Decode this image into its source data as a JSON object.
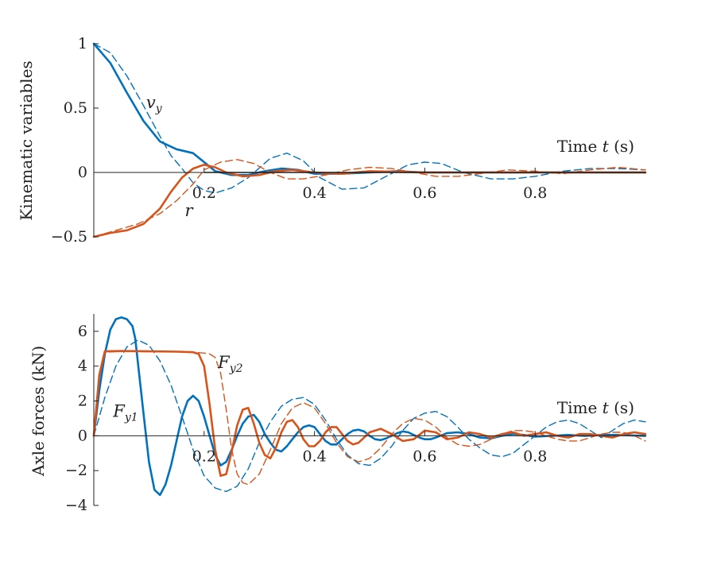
{
  "chart_data": [
    {
      "type": "line",
      "ylabel": "Kinematic variables",
      "xlabel": "Time t (s)",
      "xlabel_parts": {
        "word": "Time",
        "var": "t",
        "unit": "(s)"
      },
      "xlim": [
        0,
        1.0
      ],
      "ylim": [
        -0.5,
        1.0
      ],
      "xticks": [
        0.2,
        0.4,
        0.6,
        0.8
      ],
      "xtick_labels": [
        "0.2",
        "0.4",
        "0.6",
        "0.8"
      ],
      "yticks": [
        -0.5,
        0,
        0.5,
        1
      ],
      "ytick_labels": [
        "−0.5",
        "0",
        "0.5",
        "1"
      ],
      "grid": false,
      "annotations": [
        {
          "id": "vy",
          "base": "v",
          "sub": "y",
          "x": 0.095,
          "y": 0.5
        },
        {
          "id": "r",
          "base": "r",
          "sub": "",
          "x": 0.165,
          "y": -0.34
        }
      ],
      "series": [
        {
          "id": "vy_solid",
          "color": "#0072BD",
          "style": "solid",
          "x": [
            0,
            0.03,
            0.06,
            0.09,
            0.12,
            0.15,
            0.18,
            0.2,
            0.22,
            0.25,
            0.28,
            0.31,
            0.34,
            0.37,
            0.4,
            0.45,
            0.5,
            0.55,
            0.6,
            0.7,
            0.8,
            0.9,
            1.0
          ],
          "y": [
            1.0,
            0.85,
            0.62,
            0.4,
            0.24,
            0.18,
            0.15,
            0.08,
            0.01,
            -0.02,
            -0.02,
            0.01,
            0.03,
            0.02,
            -0.01,
            -0.01,
            0.0,
            0.01,
            0.0,
            0.0,
            0.0,
            0.0,
            0.0
          ]
        },
        {
          "id": "vy_dashed",
          "color": "#0072BD",
          "style": "dashed",
          "x": [
            0,
            0.03,
            0.06,
            0.09,
            0.12,
            0.14,
            0.16,
            0.18,
            0.2,
            0.22,
            0.25,
            0.28,
            0.32,
            0.35,
            0.38,
            0.41,
            0.45,
            0.49,
            0.53,
            0.57,
            0.6,
            0.63,
            0.67,
            0.72,
            0.76,
            0.8,
            0.85,
            0.9,
            0.95,
            1.0
          ],
          "y": [
            1.0,
            0.93,
            0.75,
            0.52,
            0.28,
            0.13,
            0.03,
            -0.08,
            -0.14,
            -0.16,
            -0.12,
            -0.04,
            0.11,
            0.15,
            0.09,
            -0.04,
            -0.13,
            -0.12,
            -0.03,
            0.06,
            0.08,
            0.07,
            0.0,
            -0.05,
            -0.05,
            -0.03,
            0.01,
            0.03,
            0.03,
            0.02
          ]
        },
        {
          "id": "r_solid",
          "color": "#D95319",
          "style": "solid",
          "x": [
            0,
            0.03,
            0.06,
            0.09,
            0.12,
            0.14,
            0.16,
            0.18,
            0.2,
            0.22,
            0.24,
            0.27,
            0.3,
            0.33,
            0.36,
            0.4,
            0.45,
            0.5,
            0.6,
            0.7,
            0.8,
            0.9,
            1.0
          ],
          "y": [
            -0.5,
            -0.47,
            -0.45,
            -0.4,
            -0.28,
            -0.15,
            -0.04,
            0.03,
            0.06,
            0.04,
            0.0,
            -0.03,
            -0.02,
            0.01,
            0.02,
            0.0,
            -0.01,
            0.01,
            0.0,
            0.0,
            0.0,
            0.0,
            0.0
          ]
        },
        {
          "id": "r_dashed",
          "color": "#D95319",
          "style": "dashed",
          "x": [
            0,
            0.04,
            0.08,
            0.12,
            0.15,
            0.18,
            0.2,
            0.23,
            0.26,
            0.29,
            0.32,
            0.35,
            0.38,
            0.42,
            0.46,
            0.5,
            0.54,
            0.58,
            0.62,
            0.66,
            0.7,
            0.75,
            0.8,
            0.85,
            0.9,
            0.95,
            1.0
          ],
          "y": [
            -0.5,
            -0.45,
            -0.4,
            -0.32,
            -0.22,
            -0.09,
            0.02,
            0.08,
            0.1,
            0.07,
            0.0,
            -0.05,
            -0.05,
            -0.02,
            0.02,
            0.04,
            0.03,
            0.0,
            -0.03,
            -0.03,
            -0.01,
            0.02,
            0.01,
            -0.01,
            0.02,
            0.04,
            0.02
          ]
        },
        {
          "id": "zero_black",
          "color": "#111111",
          "style": "solid",
          "x": [
            0.2,
            0.3,
            0.4,
            0.5,
            0.6,
            0.7,
            0.8,
            0.9,
            1.0
          ],
          "y": [
            0.0,
            0.0,
            0.0,
            0.0,
            0.0,
            0.0,
            0.0,
            0.0,
            0.0
          ]
        }
      ]
    },
    {
      "type": "line",
      "ylabel": "Axle forces (kN)",
      "xlabel": "Time t (s)",
      "xlabel_parts": {
        "word": "Time",
        "var": "t",
        "unit": "(s)"
      },
      "xlim": [
        0,
        1.0
      ],
      "ylim": [
        -4,
        7
      ],
      "xticks": [
        0.2,
        0.4,
        0.6,
        0.8
      ],
      "xtick_labels": [
        "0.2",
        "0.4",
        "0.6",
        "0.8"
      ],
      "yticks": [
        -4,
        -2,
        0,
        2,
        4,
        6
      ],
      "ytick_labels": [
        "−4",
        "−2",
        "0",
        "2",
        "4",
        "6"
      ],
      "grid": false,
      "annotations": [
        {
          "id": "fy1",
          "base": "F",
          "sub": "y1",
          "x": 0.035,
          "y": 1.1
        },
        {
          "id": "fy2",
          "base": "F",
          "sub": "y2",
          "x": 0.225,
          "y": 3.9
        }
      ],
      "series": [
        {
          "id": "fy1_solid",
          "color": "#0072BD",
          "style": "solid",
          "x": [
            0,
            0.01,
            0.02,
            0.03,
            0.04,
            0.05,
            0.06,
            0.07,
            0.075,
            0.08,
            0.09,
            0.1,
            0.11,
            0.12,
            0.13,
            0.14,
            0.15,
            0.16,
            0.17,
            0.18,
            0.19,
            0.2,
            0.21,
            0.22,
            0.23,
            0.24,
            0.25,
            0.26,
            0.27,
            0.28,
            0.29,
            0.3,
            0.31,
            0.32,
            0.33,
            0.34,
            0.35,
            0.36,
            0.37,
            0.38,
            0.39,
            0.4,
            0.41,
            0.42,
            0.43,
            0.44,
            0.45,
            0.46,
            0.47,
            0.48,
            0.49,
            0.5,
            0.51,
            0.52,
            0.53,
            0.54,
            0.55,
            0.56,
            0.57,
            0.58,
            0.59,
            0.6,
            0.61,
            0.62,
            0.64,
            0.66,
            0.68,
            0.7,
            0.72,
            0.74,
            0.76,
            0.78,
            0.8,
            0.83,
            0.86,
            0.89,
            0.92,
            0.95,
            1.0
          ],
          "y": [
            0.0,
            2.6,
            4.7,
            6.1,
            6.7,
            6.8,
            6.7,
            6.3,
            5.6,
            4.2,
            1.3,
            -1.5,
            -3.1,
            -3.4,
            -2.8,
            -1.7,
            -0.3,
            1.1,
            2.0,
            2.3,
            2.0,
            1.1,
            0.0,
            -1.1,
            -1.7,
            -1.5,
            -0.8,
            0.0,
            0.7,
            1.1,
            1.2,
            0.8,
            0.1,
            -0.4,
            -0.8,
            -0.9,
            -0.6,
            -0.2,
            0.2,
            0.5,
            0.6,
            0.5,
            0.1,
            -0.3,
            -0.5,
            -0.5,
            -0.2,
            0.1,
            0.3,
            0.35,
            0.25,
            0.0,
            -0.2,
            -0.25,
            -0.15,
            0.0,
            0.15,
            0.25,
            0.2,
            0.05,
            -0.1,
            -0.2,
            -0.2,
            -0.1,
            0.15,
            0.2,
            0.1,
            -0.1,
            -0.15,
            0.0,
            0.1,
            0.05,
            -0.05,
            0.0,
            0.05,
            0.0,
            0.05,
            0.05,
            0.0
          ]
        },
        {
          "id": "fy1_dashed",
          "color": "#0072BD",
          "style": "dashed",
          "x": [
            0,
            0.02,
            0.04,
            0.06,
            0.08,
            0.1,
            0.12,
            0.14,
            0.16,
            0.18,
            0.2,
            0.22,
            0.24,
            0.26,
            0.28,
            0.3,
            0.32,
            0.34,
            0.36,
            0.38,
            0.4,
            0.42,
            0.44,
            0.46,
            0.48,
            0.5,
            0.52,
            0.54,
            0.56,
            0.58,
            0.6,
            0.62,
            0.64,
            0.66,
            0.68,
            0.7,
            0.72,
            0.74,
            0.76,
            0.78,
            0.8,
            0.82,
            0.84,
            0.86,
            0.88,
            0.9,
            0.92,
            0.94,
            0.96,
            0.98,
            1.0
          ],
          "y": [
            0.0,
            2.2,
            4.0,
            5.1,
            5.5,
            5.2,
            4.3,
            2.9,
            1.1,
            -0.8,
            -2.3,
            -3.0,
            -3.2,
            -2.9,
            -1.9,
            -0.4,
            0.8,
            1.7,
            2.1,
            2.2,
            1.8,
            0.9,
            -0.2,
            -1.1,
            -1.6,
            -1.7,
            -1.3,
            -0.6,
            0.3,
            1.0,
            1.3,
            1.4,
            1.1,
            0.5,
            -0.2,
            -0.7,
            -1.1,
            -1.2,
            -1.0,
            -0.5,
            0.0,
            0.5,
            0.8,
            0.9,
            0.7,
            0.3,
            -0.1,
            0.3,
            0.7,
            0.9,
            0.8
          ]
        },
        {
          "id": "fy2_solid",
          "color": "#D95319",
          "style": "solid",
          "x": [
            0,
            0.01,
            0.02,
            0.05,
            0.1,
            0.15,
            0.18,
            0.19,
            0.2,
            0.21,
            0.22,
            0.23,
            0.24,
            0.25,
            0.26,
            0.27,
            0.28,
            0.29,
            0.3,
            0.31,
            0.32,
            0.33,
            0.34,
            0.35,
            0.36,
            0.37,
            0.38,
            0.39,
            0.4,
            0.41,
            0.42,
            0.43,
            0.44,
            0.45,
            0.46,
            0.47,
            0.48,
            0.49,
            0.5,
            0.52,
            0.54,
            0.56,
            0.58,
            0.6,
            0.62,
            0.64,
            0.66,
            0.68,
            0.7,
            0.72,
            0.74,
            0.76,
            0.78,
            0.8,
            0.82,
            0.84,
            0.86,
            0.88,
            0.9,
            0.92,
            0.94,
            0.96,
            0.98,
            1.0
          ],
          "y": [
            0.0,
            3.5,
            4.85,
            4.87,
            4.85,
            4.83,
            4.8,
            4.7,
            4.0,
            1.8,
            -0.8,
            -2.3,
            -2.2,
            -0.9,
            0.6,
            1.5,
            1.6,
            0.7,
            -0.4,
            -1.1,
            -1.3,
            -0.7,
            0.2,
            0.8,
            0.9,
            0.5,
            -0.2,
            -0.6,
            -0.6,
            -0.3,
            0.2,
            0.5,
            0.5,
            0.1,
            -0.3,
            -0.5,
            -0.4,
            -0.1,
            0.2,
            0.4,
            0.1,
            -0.3,
            -0.2,
            0.3,
            0.2,
            -0.2,
            -0.1,
            0.2,
            0.1,
            -0.1,
            0.1,
            0.2,
            0.0,
            0.1,
            0.2,
            0.0,
            -0.1,
            0.1,
            0.1,
            0.0,
            -0.1,
            0.1,
            0.2,
            0.1
          ]
        },
        {
          "id": "fy2_dashed",
          "color": "#D95319",
          "style": "dashed",
          "x": [
            0,
            0.01,
            0.02,
            0.05,
            0.1,
            0.15,
            0.18,
            0.2,
            0.21,
            0.22,
            0.23,
            0.24,
            0.25,
            0.26,
            0.27,
            0.28,
            0.3,
            0.32,
            0.34,
            0.36,
            0.38,
            0.4,
            0.42,
            0.44,
            0.46,
            0.48,
            0.5,
            0.52,
            0.54,
            0.56,
            0.58,
            0.6,
            0.62,
            0.64,
            0.66,
            0.68,
            0.7,
            0.72,
            0.74,
            0.76,
            0.78,
            0.8,
            0.82,
            0.84,
            0.86,
            0.88,
            0.9,
            0.92,
            0.94,
            0.96,
            0.98,
            1.0
          ],
          "y": [
            0.0,
            3.3,
            4.8,
            4.85,
            4.83,
            4.82,
            4.8,
            4.75,
            4.7,
            4.5,
            3.6,
            1.5,
            -0.8,
            -2.2,
            -2.7,
            -2.8,
            -2.2,
            -0.8,
            0.7,
            1.6,
            1.9,
            1.6,
            0.7,
            -0.4,
            -1.2,
            -1.5,
            -1.3,
            -0.7,
            0.1,
            0.7,
            1.0,
            0.9,
            0.5,
            -0.1,
            -0.5,
            -0.6,
            -0.5,
            -0.2,
            0.1,
            0.3,
            0.3,
            0.2,
            0.0,
            -0.2,
            -0.3,
            -0.3,
            -0.1,
            0.1,
            0.2,
            0.2,
            0.0,
            -0.3
          ]
        }
      ]
    }
  ]
}
